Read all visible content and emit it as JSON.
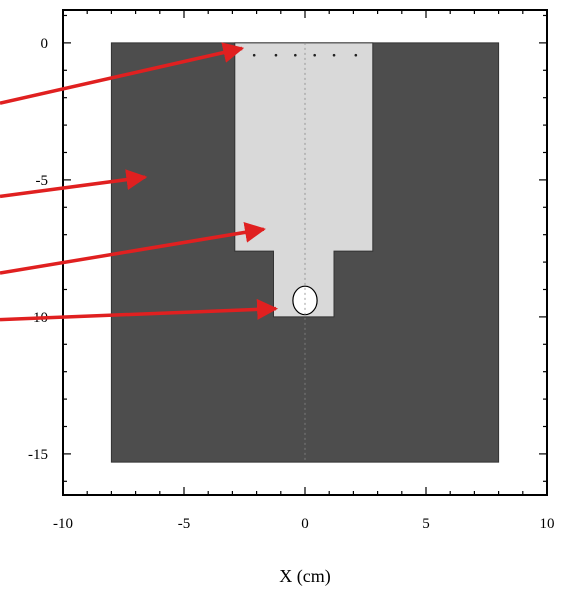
{
  "chart_data": {
    "type": "diagram",
    "xlabel": "X (cm)",
    "ylabel": "",
    "xlim": [
      -10,
      10
    ],
    "ylim": [
      -16.5,
      1.2
    ],
    "x_ticks": [
      {
        "value": -10,
        "label": "-10"
      },
      {
        "value": -5,
        "label": "-5"
      },
      {
        "value": 0,
        "label": "0"
      },
      {
        "value": 5,
        "label": "5"
      },
      {
        "value": 10,
        "label": "10"
      }
    ],
    "y_ticks": [
      {
        "value": 0,
        "label": "0"
      },
      {
        "value": -5,
        "label": "-5"
      },
      {
        "value": -10,
        "label": "-10"
      },
      {
        "value": -15,
        "label": "-15"
      }
    ],
    "regions": [
      {
        "name": "outer-block",
        "color": "#4d4d4d",
        "points": [
          [
            -8,
            0
          ],
          [
            8,
            0
          ],
          [
            8,
            -15.3
          ],
          [
            -8,
            -15.3
          ]
        ]
      },
      {
        "name": "inner-cavity",
        "color": "#d9d9d9",
        "points": [
          [
            -2.9,
            0
          ],
          [
            2.8,
            0
          ],
          [
            2.8,
            -7.6
          ],
          [
            1.2,
            -7.6
          ],
          [
            1.2,
            -10
          ],
          [
            -1.3,
            -10
          ],
          [
            -1.3,
            -7.6
          ],
          [
            -2.9,
            -7.6
          ]
        ]
      }
    ],
    "circle": {
      "name": "sample-hole",
      "color": "#ffffff",
      "cx": 0,
      "cy": -9.4,
      "rx": 0.5,
      "ry": 0.52
    },
    "dot_row": {
      "y": -0.45,
      "x": [
        -2.1,
        -1.2,
        -0.4,
        0.4,
        1.2,
        2.1
      ]
    },
    "arrows": [
      {
        "name": "arrow-top",
        "color": "#e02020",
        "from": [
          -13,
          -2.2
        ],
        "to": [
          -2.6,
          -0.2
        ]
      },
      {
        "name": "arrow-outer",
        "color": "#e02020",
        "from": [
          -13,
          -5.6
        ],
        "to": [
          -6.6,
          -4.9
        ]
      },
      {
        "name": "arrow-cavity",
        "color": "#e02020",
        "from": [
          -13,
          -8.4
        ],
        "to": [
          -1.7,
          -6.8
        ]
      },
      {
        "name": "arrow-hole",
        "color": "#e02020",
        "from": [
          -13,
          -10.1
        ],
        "to": [
          -1.2,
          -9.7
        ]
      }
    ]
  }
}
